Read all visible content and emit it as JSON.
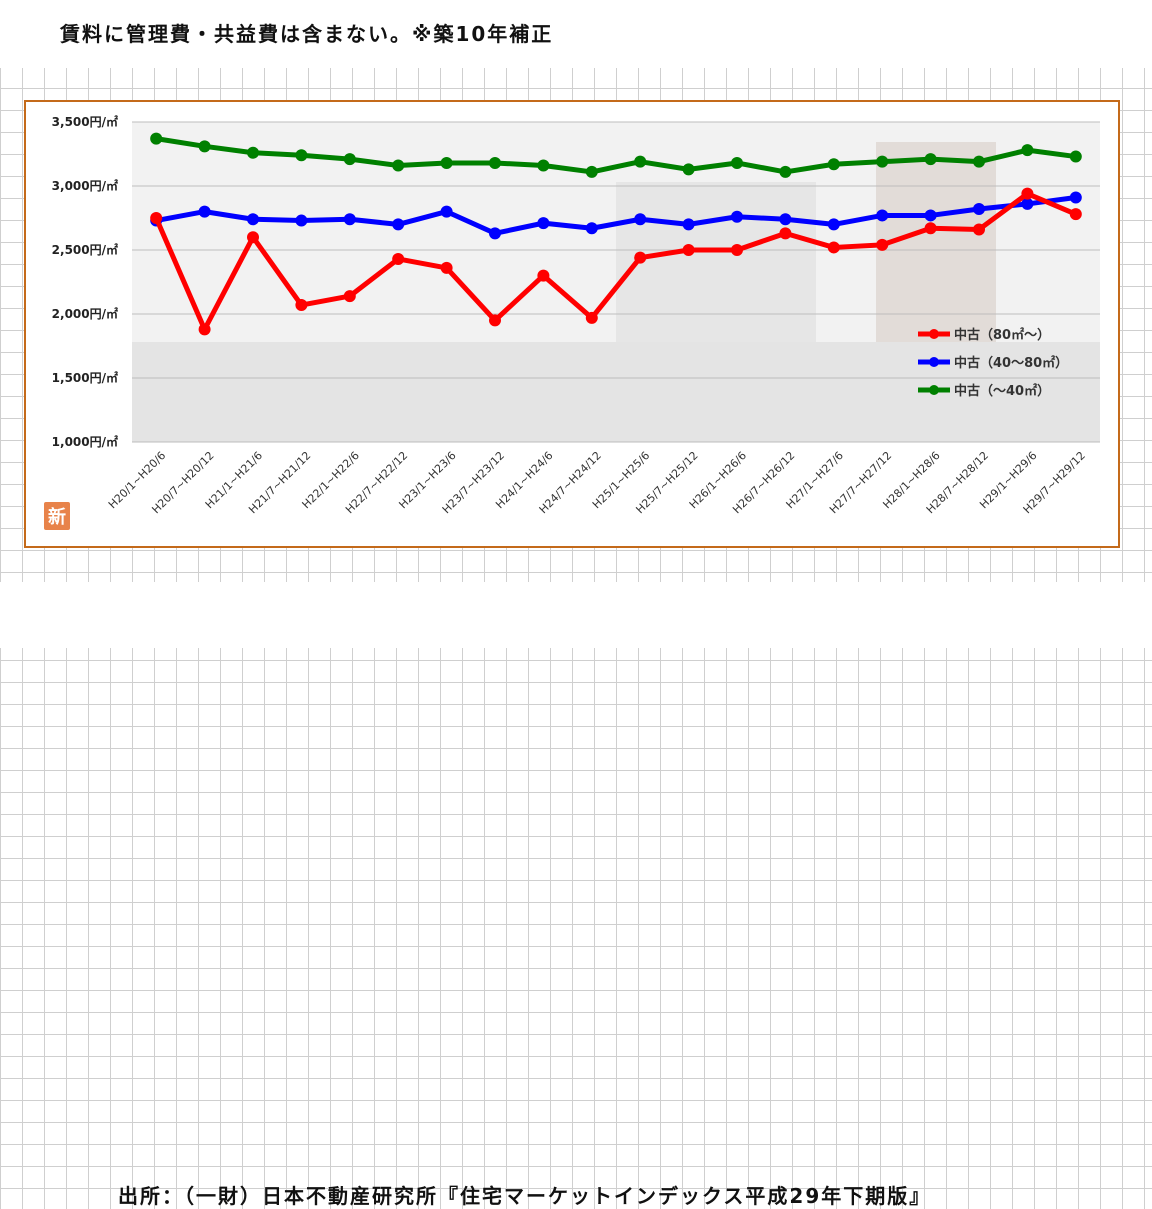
{
  "note": "賃料に管理費・共益費は含まない。※築10年補正",
  "source": "出所：（一財）日本不動産研究所『住宅マーケットインデックス平成29年下期版』",
  "badge": "新",
  "colors": {
    "frame": "#c46a1a",
    "badge": "#e8834a"
  },
  "chart_data": {
    "type": "line",
    "categories": [
      "H20/1~H20/6",
      "H20/7~H20/12",
      "H21/1~H21/6",
      "H21/7~H21/12",
      "H22/1~H22/6",
      "H22/7~H22/12",
      "H23/1~H23/6",
      "H23/7~H23/12",
      "H24/1~H24/6",
      "H24/7~H24/12",
      "H25/1~H25/6",
      "H25/7~H25/12",
      "H26/1~H26/6",
      "H26/7~H26/12",
      "H27/1~H27/6",
      "H27/7~H27/12",
      "H28/1~H28/6",
      "H28/7~H28/12",
      "H29/1~H29/6",
      "H29/7~H29/12"
    ],
    "yticks": [
      "3,500円/㎡",
      "3,000円/㎡",
      "2,500円/㎡",
      "2,000円/㎡",
      "1,500円/㎡",
      "1,000円/㎡"
    ],
    "ylim": [
      1000,
      3500
    ],
    "grid": true,
    "legend_position": "right",
    "series": [
      {
        "name": "中古（80㎡～）",
        "color": "#ff0000",
        "values": [
          2750,
          1880,
          2600,
          2070,
          2140,
          2430,
          2360,
          1950,
          2300,
          1970,
          2440,
          2500,
          2500,
          2630,
          2520,
          2540,
          2670,
          2660,
          2940,
          2780
        ]
      },
      {
        "name": "中古（40～80㎡）",
        "color": "#0000ff",
        "values": [
          2730,
          2800,
          2740,
          2730,
          2740,
          2700,
          2800,
          2630,
          2710,
          2670,
          2740,
          2700,
          2760,
          2740,
          2700,
          2770,
          2770,
          2820,
          2860,
          2910
        ]
      },
      {
        "name": "中古（～40㎡）",
        "color": "#008000",
        "values": [
          3370,
          3310,
          3260,
          3240,
          3210,
          3160,
          3180,
          3180,
          3160,
          3110,
          3190,
          3130,
          3180,
          3110,
          3170,
          3190,
          3210,
          3190,
          3280,
          3230
        ]
      }
    ]
  }
}
